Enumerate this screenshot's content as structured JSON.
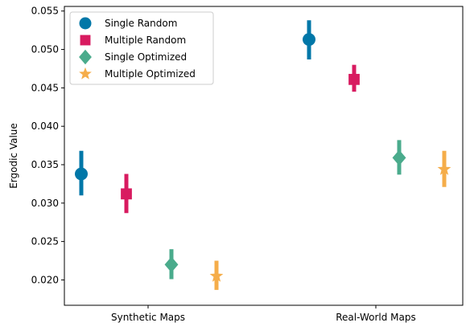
{
  "chart_data": {
    "type": "scatter",
    "title": "",
    "xlabel": "",
    "ylabel": "Ergodic Value",
    "categories": [
      "Synthetic Maps",
      "Real-World Maps"
    ],
    "ylim": [
      0.0167,
      0.0556
    ],
    "yticks": [
      0.02,
      0.025,
      0.03,
      0.035,
      0.04,
      0.045,
      0.05,
      0.055
    ],
    "ytick_labels": [
      "0.020",
      "0.025",
      "0.030",
      "0.035",
      "0.040",
      "0.045",
      "0.050",
      "0.055"
    ],
    "grid": false,
    "legend_position": "top-left",
    "series": [
      {
        "name": "Single Random",
        "marker": "circle",
        "color": "#0077a8",
        "values": [
          0.0338,
          0.0513
        ],
        "error_low": [
          0.031,
          0.0487
        ],
        "error_high": [
          0.0368,
          0.0538
        ]
      },
      {
        "name": "Multiple Random",
        "marker": "square",
        "color": "#d81b60",
        "values": [
          0.0312,
          0.0461
        ],
        "error_low": [
          0.0287,
          0.0445
        ],
        "error_high": [
          0.0338,
          0.048
        ]
      },
      {
        "name": "Single Optimized",
        "marker": "diamond",
        "color": "#4aab8c",
        "values": [
          0.022,
          0.0359
        ],
        "error_low": [
          0.0201,
          0.0337
        ],
        "error_high": [
          0.024,
          0.0382
        ]
      },
      {
        "name": "Multiple Optimized",
        "marker": "star",
        "color": "#f5ad4a",
        "values": [
          0.0205,
          0.0344
        ],
        "error_low": [
          0.0187,
          0.0321
        ],
        "error_high": [
          0.0225,
          0.0368
        ]
      }
    ]
  }
}
